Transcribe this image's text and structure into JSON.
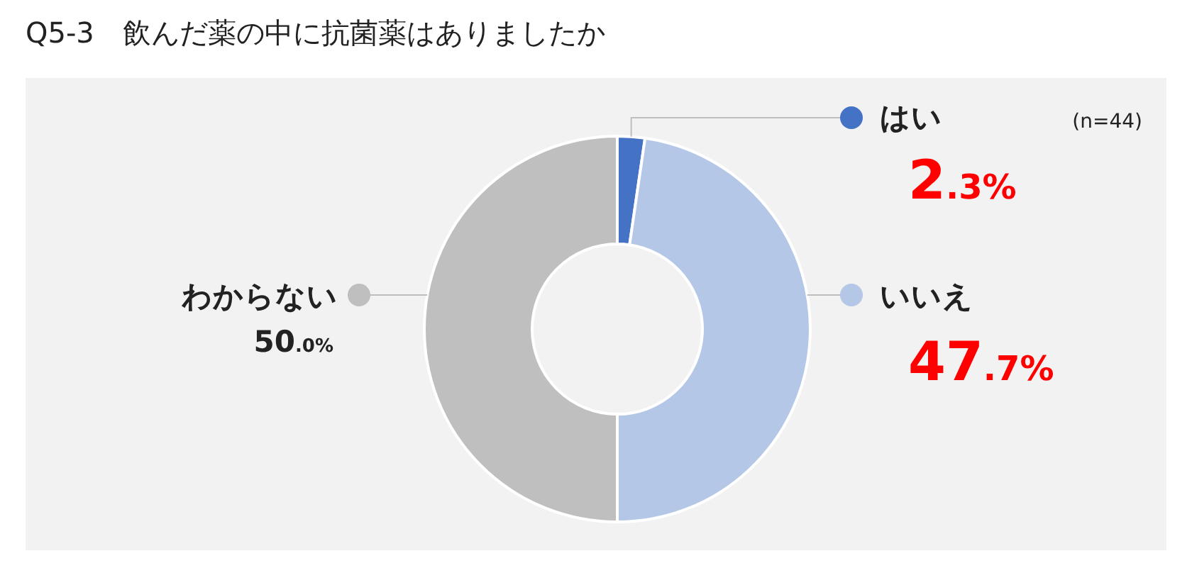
{
  "chart_data": {
    "type": "donut",
    "title": "Q5-3　飲んだ薬の中に抗菌薬はありましたか",
    "categories": [
      "はい",
      "いいえ",
      "わからない"
    ],
    "values": [
      2.3,
      47.7,
      50.0
    ],
    "colors": [
      "#4472c4",
      "#b4c7e7",
      "#bfbfbf"
    ],
    "value_labels": [
      "2.3%",
      "47.7%",
      "50.0%"
    ],
    "annotations": [
      "(n=44)"
    ],
    "legend": "right"
  }
}
